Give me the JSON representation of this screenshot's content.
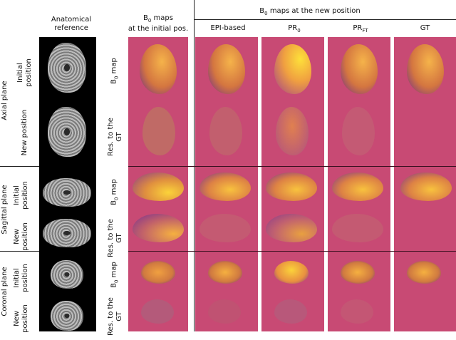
{
  "headers": {
    "anatomical": "Anatomical reference",
    "initial_maps_l1": "B",
    "initial_maps_sub": "0",
    "initial_maps_l1b": " maps",
    "initial_maps_l2": "at the initial pos.",
    "new_pos_a": "B",
    "new_pos_sub": "0",
    "new_pos_b": " maps at the new position",
    "epi": "EPI-based",
    "pr0_main": "PR",
    "pr0_sub": "0",
    "prft_main": "PR",
    "prft_sub": "FT",
    "gt": "GT"
  },
  "planes": [
    "Axial plane",
    "Sagittal plane",
    "Coronal plane"
  ],
  "positions": [
    "Initial position",
    "New position"
  ],
  "row_types": {
    "b0_a": "B",
    "b0_sub": "0",
    "b0_b": " map",
    "res": "Res. to the GT"
  }
}
